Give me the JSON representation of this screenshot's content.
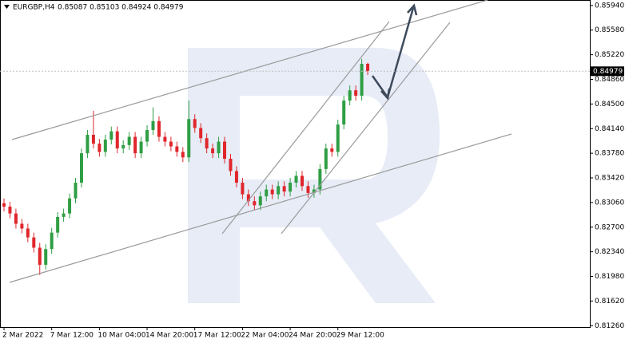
{
  "chart_data": {
    "type": "candlestick",
    "symbol": "EURGBP,H4",
    "quote": "0.85087 0.85103 0.84924 0.84979",
    "last_price": 0.84979,
    "up_color": "#2f9e44",
    "down_color": "#e0262b",
    "categories": [
      "2 Mar 2022",
      null,
      null,
      null,
      null,
      null,
      null,
      null,
      "7 Mar 12:00",
      null,
      null,
      null,
      null,
      null,
      null,
      null,
      "10 Mar 04:00",
      null,
      null,
      null,
      null,
      null,
      null,
      null,
      "14 Mar 20:00",
      null,
      null,
      null,
      null,
      null,
      null,
      null,
      "17 Mar 12:00",
      null,
      null,
      null,
      null,
      null,
      null,
      null,
      "22 Mar 04:00",
      null,
      null,
      null,
      null,
      null,
      null,
      null,
      "24 Mar 20:00",
      null,
      null,
      null,
      null,
      null,
      null,
      null,
      "29 Mar 12:00",
      null,
      null,
      null,
      null,
      null
    ],
    "open": [
      0.8305,
      0.83,
      0.829,
      0.8275,
      0.8268,
      0.8255,
      0.824,
      0.8215,
      0.8238,
      0.8262,
      0.8285,
      0.829,
      0.8312,
      0.8335,
      0.8378,
      0.8405,
      0.8392,
      0.838,
      0.8398,
      0.841,
      0.8385,
      0.839,
      0.8402,
      0.8378,
      0.8395,
      0.8412,
      0.8425,
      0.8402,
      0.8395,
      0.8388,
      0.838,
      0.8372,
      0.8428,
      0.8415,
      0.84,
      0.8385,
      0.8378,
      0.8395,
      0.837,
      0.8352,
      0.8335,
      0.8318,
      0.8308,
      0.8302,
      0.8315,
      0.8325,
      0.8318,
      0.833,
      0.8322,
      0.8335,
      0.8345,
      0.833,
      0.832,
      0.8325,
      0.8355,
      0.8385,
      0.838,
      0.842,
      0.8455,
      0.847,
      0.8462,
      0.85087
    ],
    "high": [
      0.8312,
      0.8307,
      0.8297,
      0.8282,
      0.8275,
      0.8262,
      0.8247,
      0.8245,
      0.8269,
      0.8292,
      0.8297,
      0.8319,
      0.8342,
      0.8385,
      0.8412,
      0.844,
      0.8399,
      0.8405,
      0.8417,
      0.8417,
      0.8397,
      0.8409,
      0.8409,
      0.8402,
      0.8419,
      0.8445,
      0.8432,
      0.8409,
      0.8402,
      0.8395,
      0.8387,
      0.8455,
      0.8435,
      0.8422,
      0.8407,
      0.8392,
      0.8402,
      0.8402,
      0.8377,
      0.8359,
      0.8342,
      0.8325,
      0.8315,
      0.8322,
      0.8332,
      0.8332,
      0.8337,
      0.8337,
      0.8342,
      0.8352,
      0.8352,
      0.8337,
      0.8332,
      0.8362,
      0.8392,
      0.8392,
      0.8427,
      0.8462,
      0.8477,
      0.8477,
      0.8516,
      0.85103
    ],
    "low": [
      0.8293,
      0.8283,
      0.8268,
      0.8261,
      0.8248,
      0.8233,
      0.82,
      0.8208,
      0.8231,
      0.8255,
      0.8278,
      0.8283,
      0.8305,
      0.8328,
      0.8371,
      0.8385,
      0.8373,
      0.8373,
      0.8391,
      0.8378,
      0.8378,
      0.8383,
      0.8371,
      0.8371,
      0.8388,
      0.8405,
      0.8395,
      0.8388,
      0.8381,
      0.8373,
      0.8365,
      0.8365,
      0.8408,
      0.8393,
      0.8378,
      0.8371,
      0.8371,
      0.8363,
      0.8345,
      0.8328,
      0.8311,
      0.8301,
      0.8295,
      0.8295,
      0.8308,
      0.8311,
      0.8311,
      0.8315,
      0.8315,
      0.8328,
      0.8323,
      0.8313,
      0.8313,
      0.8318,
      0.8348,
      0.8373,
      0.8373,
      0.8413,
      0.8448,
      0.8455,
      0.8455,
      0.84924
    ],
    "close": [
      0.83,
      0.829,
      0.8275,
      0.8268,
      0.8255,
      0.824,
      0.8215,
      0.8238,
      0.8262,
      0.8285,
      0.829,
      0.8312,
      0.8335,
      0.8378,
      0.8405,
      0.8392,
      0.838,
      0.8398,
      0.841,
      0.8385,
      0.839,
      0.8402,
      0.8378,
      0.8395,
      0.8412,
      0.8425,
      0.8402,
      0.8395,
      0.8388,
      0.838,
      0.8372,
      0.8428,
      0.8415,
      0.84,
      0.8385,
      0.8378,
      0.8395,
      0.837,
      0.8352,
      0.8335,
      0.8318,
      0.8308,
      0.8302,
      0.8315,
      0.8325,
      0.8318,
      0.833,
      0.8322,
      0.8335,
      0.8345,
      0.833,
      0.832,
      0.8325,
      0.8355,
      0.8385,
      0.838,
      0.842,
      0.8455,
      0.847,
      0.8462,
      0.85087,
      0.84979
    ],
    "ylim": [
      0.8124,
      0.8602
    ],
    "yticks": [
      {
        "value": 0.8594,
        "label": "0.85940"
      },
      {
        "value": 0.8558,
        "label": "0.85580"
      },
      {
        "value": 0.8522,
        "label": "0.85220"
      },
      {
        "value": 0.8486,
        "label": "0.84860"
      },
      {
        "value": 0.845,
        "label": "0.84500"
      },
      {
        "value": 0.8414,
        "label": "0.84140"
      },
      {
        "value": 0.8378,
        "label": "0.83780"
      },
      {
        "value": 0.8342,
        "label": "0.83420"
      },
      {
        "value": 0.8306,
        "label": "0.83060"
      },
      {
        "value": 0.827,
        "label": "0.82700"
      },
      {
        "value": 0.8234,
        "label": "0.82340"
      },
      {
        "value": 0.8198,
        "label": "0.81980"
      },
      {
        "value": 0.8162,
        "label": "0.81620"
      },
      {
        "value": 0.8126,
        "label": "0.81260"
      }
    ]
  }
}
